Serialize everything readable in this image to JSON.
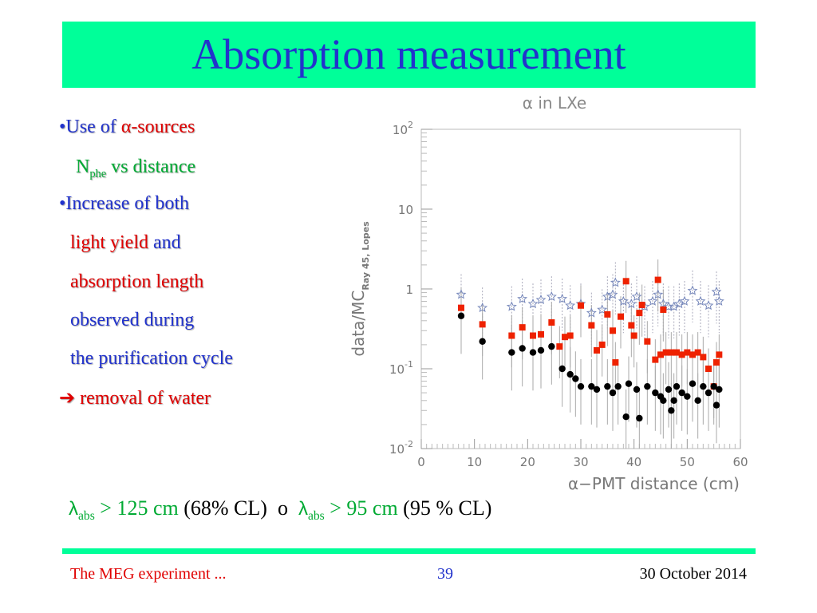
{
  "slide": {
    "title": "Absorption measurement",
    "bullets": [
      {
        "bullet": "•",
        "pre": "Use of ",
        "alpha": "α",
        "post": "-sources"
      },
      {
        "n": "N",
        "sub": "phe",
        "rest": " vs distance"
      },
      {
        "bullet": "•",
        "text": "Increase of both"
      },
      {
        "red": "light yield",
        "blue": " and"
      },
      {
        "red": "absorption length"
      },
      {
        "text": "observed during"
      },
      {
        "text": "the purification cycle"
      },
      {
        "arrow": "➔",
        "red": " removal of water"
      }
    ],
    "result": {
      "lambda1": "λ",
      "sub1": "abs",
      "val1": " > 125 cm",
      "cl1": " (68% CL)",
      "or": "  o  ",
      "lambda2": "λ",
      "sub2": "abs",
      "val2": " > 95 cm",
      "cl2": " (95 % CL)"
    },
    "footer": {
      "left": "The MEG experiment ...",
      "center": "39",
      "right": "30 October 2014"
    }
  },
  "colors": {
    "accent_green": "#00ff99",
    "title_blue": "#2233cc",
    "red": "#e00000",
    "text_green": "#00aa33",
    "black_series": "#000000",
    "red_series": "#ee2200",
    "star_series": "#7788bb"
  },
  "chart_data": {
    "type": "scatter",
    "title": "α in LXe",
    "xlabel": "α−PMT distance (cm)",
    "ylabel_main": "data/MC",
    "ylabel_sub": "Ray 45, Lopes",
    "xlim": [
      0,
      60
    ],
    "ylim": [
      0.01,
      100
    ],
    "yscale": "log",
    "x_ticks": [
      "0",
      "10",
      "20",
      "30",
      "40",
      "50",
      "60"
    ],
    "y_ticks": [
      {
        "base": "10",
        "exp": "-2",
        "value": 0.01
      },
      {
        "base": "10",
        "exp": "-1",
        "value": 0.1
      },
      {
        "base": "1",
        "exp": "",
        "value": 1
      },
      {
        "base": "10",
        "exp": "",
        "value": 10
      },
      {
        "base": "10",
        "exp": "2",
        "value": 100
      }
    ],
    "series": [
      {
        "marker": "star",
        "points": [
          [
            7.5,
            0.85
          ],
          [
            11.5,
            0.58
          ],
          [
            17,
            0.6
          ],
          [
            19,
            0.75
          ],
          [
            21,
            0.65
          ],
          [
            22.5,
            0.73
          ],
          [
            24.5,
            0.8
          ],
          [
            26.5,
            0.75
          ],
          [
            28,
            0.62
          ],
          [
            30,
            0.65
          ],
          [
            32,
            0.5
          ],
          [
            34,
            0.55
          ],
          [
            35,
            0.8
          ],
          [
            36,
            0.85
          ],
          [
            36.5,
            1.2
          ],
          [
            38,
            0.7
          ],
          [
            39.5,
            0.65
          ],
          [
            40.5,
            0.8
          ],
          [
            42,
            0.6
          ],
          [
            43.5,
            0.7
          ],
          [
            44.5,
            0.85
          ],
          [
            45.5,
            0.65
          ],
          [
            46.5,
            0.6
          ],
          [
            47.5,
            0.6
          ],
          [
            48.5,
            0.65
          ],
          [
            49.5,
            0.7
          ],
          [
            51,
            0.95
          ],
          [
            52.5,
            0.7
          ],
          [
            54,
            0.62
          ],
          [
            55.5,
            0.92
          ],
          [
            56,
            0.7
          ]
        ]
      },
      {
        "marker": "square",
        "points": [
          [
            7.5,
            0.58
          ],
          [
            11.5,
            0.36
          ],
          [
            17,
            0.26
          ],
          [
            19,
            0.33
          ],
          [
            21,
            0.26
          ],
          [
            22.5,
            0.27
          ],
          [
            24.5,
            0.38
          ],
          [
            26,
            0.19
          ],
          [
            27,
            0.25
          ],
          [
            28,
            0.26
          ],
          [
            30,
            0.62
          ],
          [
            32,
            0.35
          ],
          [
            33,
            0.17
          ],
          [
            34,
            0.2
          ],
          [
            35,
            0.48
          ],
          [
            36.5,
            0.12
          ],
          [
            37.5,
            0.45
          ],
          [
            38.5,
            1.25
          ],
          [
            39.5,
            0.35
          ],
          [
            40,
            0.26
          ],
          [
            41,
            0.5
          ],
          [
            42.5,
            0.22
          ],
          [
            44,
            0.13
          ],
          [
            44.5,
            1.3
          ],
          [
            45,
            0.15
          ],
          [
            46,
            0.16
          ],
          [
            47,
            0.16
          ],
          [
            48,
            0.16
          ],
          [
            49,
            0.15
          ],
          [
            50,
            0.16
          ],
          [
            51,
            0.15
          ],
          [
            53,
            0.14
          ],
          [
            54,
            0.1
          ],
          [
            55.5,
            0.12
          ],
          [
            56,
            0.15
          ],
          [
            55,
            0.06
          ],
          [
            45.5,
            0.55
          ],
          [
            41.5,
            0.63
          ],
          [
            36,
            0.3
          ],
          [
            52,
            0.16
          ]
        ]
      },
      {
        "marker": "circle",
        "points": [
          [
            7.5,
            0.46
          ],
          [
            11.5,
            0.22
          ],
          [
            17,
            0.16
          ],
          [
            19,
            0.18
          ],
          [
            21,
            0.16
          ],
          [
            22.5,
            0.17
          ],
          [
            24.5,
            0.19
          ],
          [
            26.5,
            0.1
          ],
          [
            28,
            0.085
          ],
          [
            29,
            0.075
          ],
          [
            30,
            0.06
          ],
          [
            32,
            0.06
          ],
          [
            33,
            0.055
          ],
          [
            35,
            0.06
          ],
          [
            36,
            0.05
          ],
          [
            37,
            0.06
          ],
          [
            38.5,
            0.025
          ],
          [
            39,
            0.065
          ],
          [
            40.5,
            0.055
          ],
          [
            41,
            0.024
          ],
          [
            42.5,
            0.06
          ],
          [
            44,
            0.05
          ],
          [
            45,
            0.045
          ],
          [
            45.5,
            0.04
          ],
          [
            46.5,
            0.055
          ],
          [
            47,
            0.03
          ],
          [
            48,
            0.06
          ],
          [
            49,
            0.05
          ],
          [
            50,
            0.045
          ],
          [
            51,
            0.065
          ],
          [
            52,
            0.04
          ],
          [
            53,
            0.06
          ],
          [
            54,
            0.05
          ],
          [
            55,
            0.06
          ],
          [
            55.5,
            0.035
          ],
          [
            56,
            0.055
          ],
          [
            47.5,
            0.04
          ]
        ]
      }
    ]
  }
}
